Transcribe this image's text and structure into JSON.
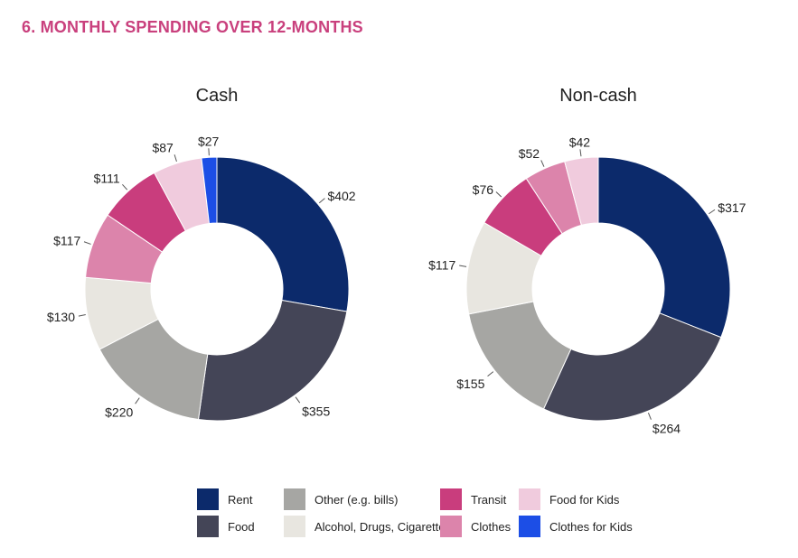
{
  "heading": "6.  MONTHLY SPENDING OVER 12-MONTHS",
  "colors": {
    "Rent": "#0c2a6b",
    "Food": "#444557",
    "Other (e.g. bills)": "#a6a6a3",
    "Alcohol, Drugs, Cigarettes": "#e8e6e0",
    "Transit": "#c93d7d",
    "Clothes": "#dc84ab",
    "Food for Kids": "#f0cbdd",
    "Clothes for Kids": "#1c4ee6"
  },
  "legend": [
    {
      "label": "Rent"
    },
    {
      "label": "Food"
    },
    {
      "label": "Other (e.g. bills)"
    },
    {
      "label": "Alcohol, Drugs, Cigarettes"
    },
    {
      "label": "Transit"
    },
    {
      "label": "Clothes"
    },
    {
      "label": "Food for Kids"
    },
    {
      "label": "Clothes for Kids"
    }
  ],
  "chart_data": [
    {
      "type": "pie",
      "title": "Cash",
      "categories": [
        "Rent",
        "Food",
        "Other (e.g. bills)",
        "Alcohol, Drugs, Cigarettes",
        "Clothes",
        "Transit",
        "Food for Kids",
        "Clothes for Kids"
      ],
      "values": [
        402,
        355,
        220,
        130,
        117,
        111,
        87,
        27
      ],
      "value_labels": [
        "$402",
        "$355",
        "$220",
        "$130",
        "$117",
        "$111",
        "$87",
        "$27"
      ]
    },
    {
      "type": "pie",
      "title": "Non-cash",
      "categories": [
        "Rent",
        "Food",
        "Other (e.g. bills)",
        "Alcohol, Drugs, Cigarettes",
        "Transit",
        "Clothes",
        "Food for Kids"
      ],
      "values": [
        317,
        264,
        155,
        117,
        76,
        52,
        42
      ],
      "value_labels": [
        "$317",
        "$264",
        "$155",
        "$117",
        "$76",
        "$52",
        "$42"
      ]
    }
  ]
}
